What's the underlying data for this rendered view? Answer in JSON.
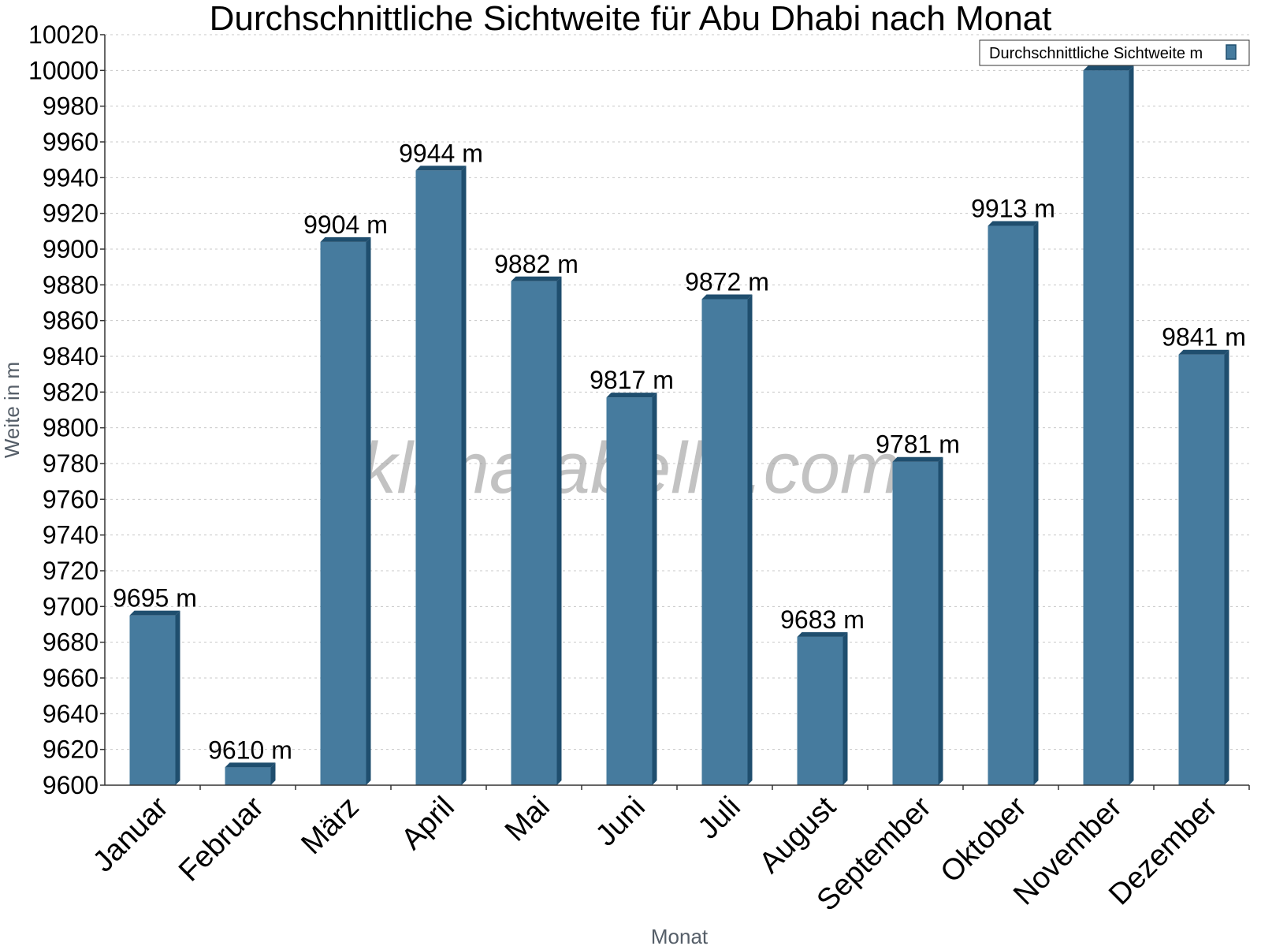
{
  "chart_data": {
    "type": "bar",
    "title": "Durchschnittliche Sichtweite für Abu Dhabi nach Monat",
    "xlabel": "Monat",
    "ylabel": "Weite in m",
    "categories": [
      "Januar",
      "Februar",
      "März",
      "April",
      "Mai",
      "Juni",
      "Juli",
      "August",
      "September",
      "Oktober",
      "November",
      "Dezember"
    ],
    "series": [
      {
        "name": "Durchschnittliche Sichtweite m",
        "values": [
          9695,
          9610,
          9904,
          9944,
          9882,
          9817,
          9872,
          9683,
          9781,
          9913,
          10000,
          9841
        ],
        "labels": [
          "9695 m",
          "9610 m",
          "9904 m",
          "9944 m",
          "9882 m",
          "9817 m",
          "9872 m",
          "9683 m",
          "9781 m",
          "9913 m",
          "",
          "9841 m"
        ],
        "color": "#467b9e",
        "side_color": "#1f4e6e"
      }
    ],
    "ylim": [
      9600,
      10020
    ],
    "yticks": [
      9600,
      9620,
      9640,
      9660,
      9680,
      9700,
      9720,
      9740,
      9760,
      9780,
      9800,
      9820,
      9840,
      9860,
      9880,
      9900,
      9920,
      9940,
      9960,
      9980,
      10000,
      10020
    ],
    "grid": true,
    "legend": "top-right",
    "watermark": "klimatabelle.com"
  }
}
